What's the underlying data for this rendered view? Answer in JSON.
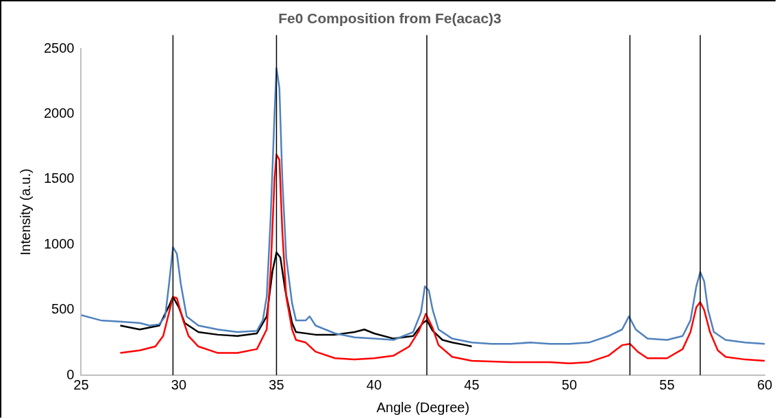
{
  "chart_data": {
    "type": "line",
    "title": "Fe0 Composition from Fe(acac)3",
    "xlabel": "Angle (Degree)",
    "ylabel": "Intensity (a.u.)",
    "xlim": [
      25,
      60
    ],
    "xticks": [
      25,
      30,
      35,
      40,
      45,
      50,
      55,
      60
    ],
    "ylim": [
      0,
      2500
    ],
    "yticks": [
      0,
      500,
      1000,
      1500,
      2000,
      2500
    ],
    "grid": false,
    "legend": false,
    "marker": "none",
    "line_style": "solid",
    "ref_lines": [
      {
        "axis": "x",
        "value": 29.7,
        "color": "#000000"
      },
      {
        "axis": "x",
        "value": 35.0,
        "color": "#000000"
      },
      {
        "axis": "x",
        "value": 42.7,
        "color": "#000000"
      },
      {
        "axis": "x",
        "value": 53.1,
        "color": "#000000"
      },
      {
        "axis": "x",
        "value": 56.7,
        "color": "#000000"
      }
    ],
    "series": [
      {
        "color": "#000000",
        "x": [
          27,
          28,
          29,
          29.5,
          29.7,
          30,
          30.3,
          31,
          32,
          33,
          34,
          34.5,
          34.8,
          35.0,
          35.2,
          35.45,
          35.8,
          36,
          37,
          38,
          39,
          39.5,
          40,
          41,
          42,
          42.5,
          42.7,
          43,
          43.5,
          44,
          44.7,
          45
        ],
        "values": [
          380,
          350,
          380,
          530,
          600,
          520,
          400,
          330,
          310,
          300,
          320,
          450,
          800,
          940,
          900,
          650,
          400,
          330,
          310,
          310,
          330,
          350,
          320,
          280,
          300,
          400,
          420,
          340,
          270,
          250,
          230,
          220
        ]
      },
      {
        "color": "#ff0000",
        "x": [
          27,
          28,
          28.8,
          29.2,
          29.5,
          29.7,
          29.9,
          30.2,
          30.5,
          31,
          32,
          33,
          34,
          34.5,
          34.7,
          34.9,
          35.0,
          35.15,
          35.3,
          35.5,
          35.8,
          36,
          36.5,
          37,
          38,
          39,
          40,
          41,
          41.8,
          42.3,
          42.65,
          43,
          43.3,
          44,
          45,
          47,
          49,
          50,
          51,
          52,
          52.7,
          53.1,
          53.5,
          54,
          55,
          55.8,
          56.2,
          56.5,
          56.7,
          56.9,
          57.2,
          57.6,
          58,
          59,
          60
        ],
        "values": [
          170,
          190,
          220,
          300,
          480,
          600,
          590,
          430,
          300,
          220,
          170,
          170,
          200,
          350,
          800,
          1500,
          1690,
          1650,
          1100,
          600,
          350,
          270,
          250,
          180,
          130,
          120,
          130,
          150,
          220,
          340,
          470,
          360,
          230,
          140,
          110,
          100,
          100,
          90,
          100,
          150,
          230,
          240,
          180,
          130,
          130,
          200,
          330,
          520,
          560,
          500,
          330,
          190,
          140,
          120,
          110
        ]
      },
      {
        "color": "#4f81bd",
        "x": [
          25,
          26,
          27,
          28,
          28.5,
          29,
          29.3,
          29.5,
          29.7,
          29.9,
          30.1,
          30.4,
          31,
          32,
          33,
          34,
          34.3,
          34.5,
          34.7,
          34.9,
          35.0,
          35.15,
          35.3,
          35.5,
          35.8,
          36,
          36.5,
          36.7,
          37,
          38,
          39,
          40,
          41,
          41.5,
          42,
          42.4,
          42.6,
          42.8,
          43,
          43.3,
          44,
          45,
          46,
          47,
          48,
          49,
          50,
          51,
          52,
          52.7,
          53.05,
          53.4,
          54,
          55,
          55.8,
          56.2,
          56.5,
          56.7,
          56.9,
          57.1,
          57.4,
          58,
          59,
          60
        ],
        "values": [
          460,
          420,
          410,
          400,
          380,
          390,
          450,
          700,
          980,
          930,
          700,
          450,
          380,
          350,
          330,
          340,
          420,
          600,
          1200,
          2000,
          2350,
          2200,
          1500,
          900,
          550,
          420,
          420,
          450,
          380,
          320,
          290,
          280,
          270,
          300,
          330,
          480,
          680,
          650,
          500,
          350,
          280,
          250,
          240,
          240,
          250,
          240,
          240,
          250,
          300,
          350,
          450,
          350,
          280,
          270,
          300,
          420,
          680,
          790,
          720,
          500,
          330,
          270,
          250,
          240
        ]
      }
    ]
  }
}
